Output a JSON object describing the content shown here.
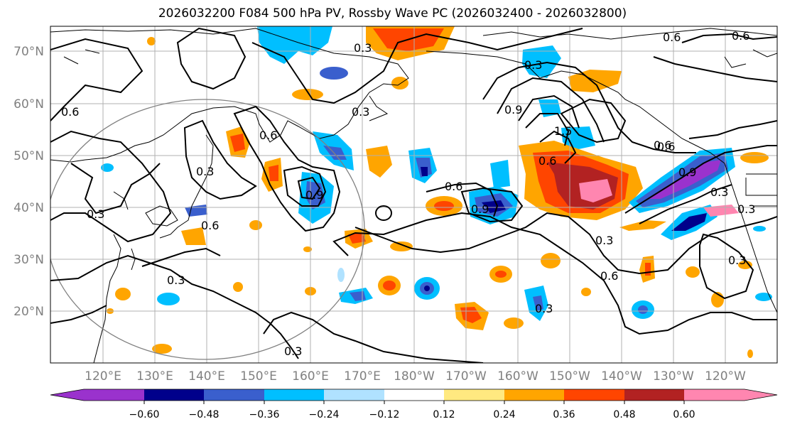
{
  "title": "2026032200 F084 500 hPa PV, Rossby Wave PC (2026032400 - 2026032800)",
  "map": {
    "lat_labels": [
      "70°N",
      "60°N",
      "50°N",
      "40°N",
      "30°N",
      "20°N"
    ],
    "lon_labels": [
      "120°E",
      "130°E",
      "140°E",
      "150°E",
      "160°E",
      "170°E",
      "180°W",
      "170°W",
      "160°W",
      "150°W",
      "140°W",
      "130°W",
      "120°W"
    ],
    "contour_labels": [
      "0.6",
      "0.3",
      "0.6",
      "0.3",
      "0.9",
      "1.5",
      "0.6",
      "0.6",
      "0.6",
      "0.9",
      "0.3",
      "0.3",
      "0.6",
      "0.3",
      "0.6",
      "0.3",
      "0.3",
      "0.6",
      "0.3",
      "0.6",
      "0.9",
      "0.9",
      "0.3",
      "0.3",
      "0.6",
      "0.3",
      "0.3"
    ]
  },
  "colorbar": {
    "ticks": [
      "−0.60",
      "−0.48",
      "−0.36",
      "−0.24",
      "−0.12",
      "0.12",
      "0.24",
      "0.36",
      "0.48",
      "0.60"
    ],
    "colors": [
      "#9a32cd",
      "#00008b",
      "#3a5fcd",
      "#00bfff",
      "#b0e2ff",
      "#ffffff",
      "#ffe980",
      "#ffa500",
      "#ff4500",
      "#b22222",
      "#ff86b0"
    ]
  }
}
